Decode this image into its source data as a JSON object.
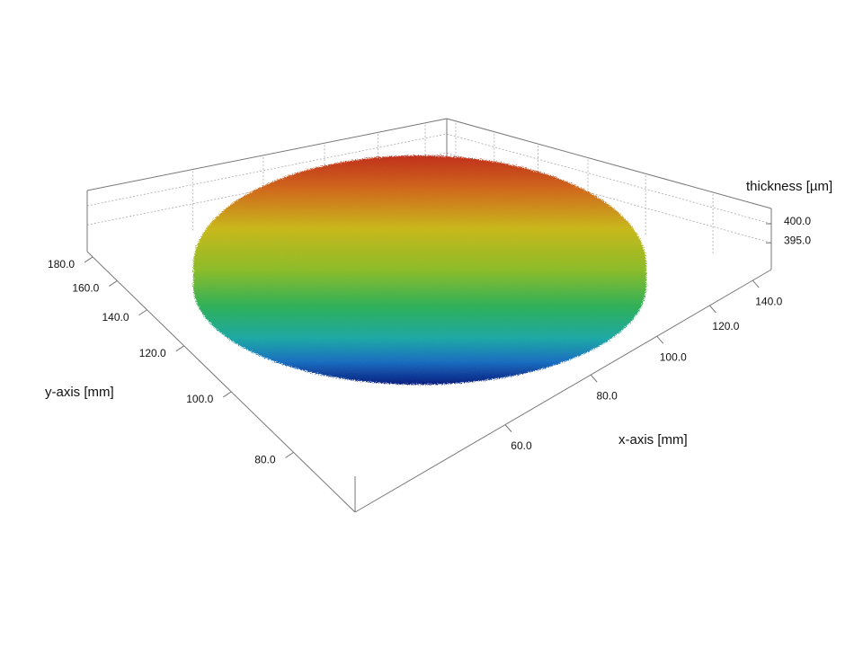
{
  "chart_data": {
    "type": "surface3d",
    "x_label": "x-axis [mm]",
    "y_label": "y-axis [mm]",
    "z_label": "thickness [µm]",
    "xlim": [
      35,
      150
    ],
    "xticks": [
      {
        "value": 60,
        "label": "60.0"
      },
      {
        "value": 80,
        "label": "80.0"
      },
      {
        "value": 100,
        "label": "100.0"
      },
      {
        "value": 120,
        "label": "120.0"
      },
      {
        "value": 140,
        "label": "140.0"
      }
    ],
    "ylim": [
      65,
      185
    ],
    "yticks": [
      {
        "value": 80,
        "label": "80.0"
      },
      {
        "value": 100,
        "label": "100.0"
      },
      {
        "value": 120,
        "label": "120.0"
      },
      {
        "value": 140,
        "label": "140.0"
      },
      {
        "value": 160,
        "label": "160.0"
      },
      {
        "value": 180,
        "label": "180.0"
      }
    ],
    "zlim": [
      388,
      404
    ],
    "zticks": [
      {
        "value": 395,
        "label": "395.0"
      },
      {
        "value": 400,
        "label": "400.0"
      }
    ],
    "grid": true
  }
}
